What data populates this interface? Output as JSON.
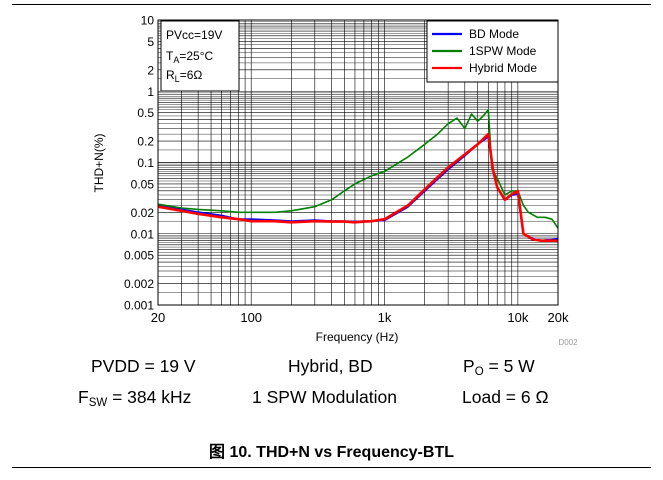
{
  "chart_data": {
    "type": "line",
    "xlabel": "Frequency (Hz)",
    "ylabel": "THD+N(%)",
    "x_scale": "log",
    "y_scale": "log",
    "xlim": [
      20,
      20000
    ],
    "ylim": [
      0.001,
      10
    ],
    "x_ticks": [
      {
        "value": 20,
        "label": "20"
      },
      {
        "value": 100,
        "label": "100"
      },
      {
        "value": 1000,
        "label": "1k"
      },
      {
        "value": 10000,
        "label": "10k"
      },
      {
        "value": 20000,
        "label": "20k"
      }
    ],
    "y_ticks": [
      {
        "value": 10,
        "label": "10"
      },
      {
        "value": 5,
        "label": "5"
      },
      {
        "value": 2,
        "label": "2"
      },
      {
        "value": 1,
        "label": "1"
      },
      {
        "value": 0.5,
        "label": "0.5"
      },
      {
        "value": 0.2,
        "label": "0.2"
      },
      {
        "value": 0.1,
        "label": "0.1"
      },
      {
        "value": 0.05,
        "label": "0.05"
      },
      {
        "value": 0.02,
        "label": "0.02"
      },
      {
        "value": 0.01,
        "label": "0.01"
      },
      {
        "value": 0.005,
        "label": "0.005"
      },
      {
        "value": 0.002,
        "label": "0.002"
      },
      {
        "value": 0.001,
        "label": "0.001"
      }
    ],
    "grid": true,
    "legend_position": "top-right",
    "info_box": {
      "line1": "PVcc=19V",
      "line2_main": "T",
      "line2_sub": "A",
      "line2_rest": "=25°C",
      "line3_main": "R",
      "line3_sub": "L",
      "line3_rest": "=6Ω"
    },
    "watermark_id": "D002",
    "series": [
      {
        "name": "BD Mode",
        "color": "#0000ff",
        "points": [
          [
            20,
            0.025
          ],
          [
            30,
            0.022
          ],
          [
            40,
            0.02
          ],
          [
            60,
            0.018
          ],
          [
            80,
            0.016
          ],
          [
            100,
            0.016
          ],
          [
            150,
            0.0155
          ],
          [
            200,
            0.015
          ],
          [
            300,
            0.0155
          ],
          [
            400,
            0.015
          ],
          [
            500,
            0.015
          ],
          [
            600,
            0.0148
          ],
          [
            700,
            0.015
          ],
          [
            800,
            0.015
          ],
          [
            1000,
            0.0155
          ],
          [
            1500,
            0.024
          ],
          [
            2000,
            0.04
          ],
          [
            3000,
            0.08
          ],
          [
            4000,
            0.125
          ],
          [
            5000,
            0.18
          ],
          [
            6000,
            0.23
          ],
          [
            6500,
            0.08
          ],
          [
            7000,
            0.045
          ],
          [
            8000,
            0.03
          ],
          [
            9000,
            0.035
          ],
          [
            10000,
            0.036
          ],
          [
            11000,
            0.01
          ],
          [
            13000,
            0.0085
          ],
          [
            15000,
            0.008
          ],
          [
            20000,
            0.0085
          ]
        ]
      },
      {
        "name": "1SPW Mode",
        "color": "#008000",
        "points": [
          [
            20,
            0.026
          ],
          [
            30,
            0.023
          ],
          [
            40,
            0.022
          ],
          [
            60,
            0.021
          ],
          [
            80,
            0.02
          ],
          [
            100,
            0.02
          ],
          [
            150,
            0.02
          ],
          [
            200,
            0.021
          ],
          [
            300,
            0.024
          ],
          [
            400,
            0.03
          ],
          [
            500,
            0.04
          ],
          [
            600,
            0.05
          ],
          [
            800,
            0.065
          ],
          [
            1000,
            0.075
          ],
          [
            1500,
            0.12
          ],
          [
            2000,
            0.18
          ],
          [
            2500,
            0.25
          ],
          [
            3000,
            0.35
          ],
          [
            3500,
            0.42
          ],
          [
            4000,
            0.3
          ],
          [
            4500,
            0.48
          ],
          [
            5000,
            0.38
          ],
          [
            5500,
            0.45
          ],
          [
            6000,
            0.55
          ],
          [
            6400,
            0.08
          ],
          [
            7000,
            0.06
          ],
          [
            8000,
            0.035
          ],
          [
            9000,
            0.04
          ],
          [
            10000,
            0.04
          ],
          [
            11000,
            0.025
          ],
          [
            12000,
            0.02
          ],
          [
            14000,
            0.017
          ],
          [
            16000,
            0.017
          ],
          [
            18000,
            0.016
          ],
          [
            20000,
            0.012
          ]
        ]
      },
      {
        "name": "Hybrid Mode",
        "color": "#ff0000",
        "points": [
          [
            20,
            0.024
          ],
          [
            30,
            0.021
          ],
          [
            40,
            0.019
          ],
          [
            60,
            0.017
          ],
          [
            80,
            0.016
          ],
          [
            100,
            0.015
          ],
          [
            150,
            0.015
          ],
          [
            200,
            0.0145
          ],
          [
            300,
            0.015
          ],
          [
            400,
            0.0148
          ],
          [
            500,
            0.0148
          ],
          [
            600,
            0.0145
          ],
          [
            700,
            0.0148
          ],
          [
            800,
            0.015
          ],
          [
            1000,
            0.016
          ],
          [
            1500,
            0.025
          ],
          [
            2000,
            0.042
          ],
          [
            3000,
            0.085
          ],
          [
            4000,
            0.13
          ],
          [
            5000,
            0.18
          ],
          [
            6000,
            0.25
          ],
          [
            6500,
            0.08
          ],
          [
            7000,
            0.045
          ],
          [
            8000,
            0.03
          ],
          [
            9000,
            0.036
          ],
          [
            10000,
            0.04
          ],
          [
            11000,
            0.01
          ],
          [
            13000,
            0.0083
          ],
          [
            15000,
            0.008
          ],
          [
            20000,
            0.008
          ]
        ]
      }
    ]
  },
  "conditions": {
    "pvdd": "PVDD = 19 V",
    "mode": "Hybrid, BD",
    "po_main": "P",
    "po_sub": "O",
    "po_rest": " = 5 W",
    "fsw_main": "F",
    "fsw_sub": "SW",
    "fsw_rest": " = 384 kHz",
    "modulation": "1 SPW Modulation",
    "load": "Load = 6 Ω"
  },
  "caption": {
    "figure_label": "图 10.",
    "title": "THD+N vs Frequency-BTL"
  }
}
